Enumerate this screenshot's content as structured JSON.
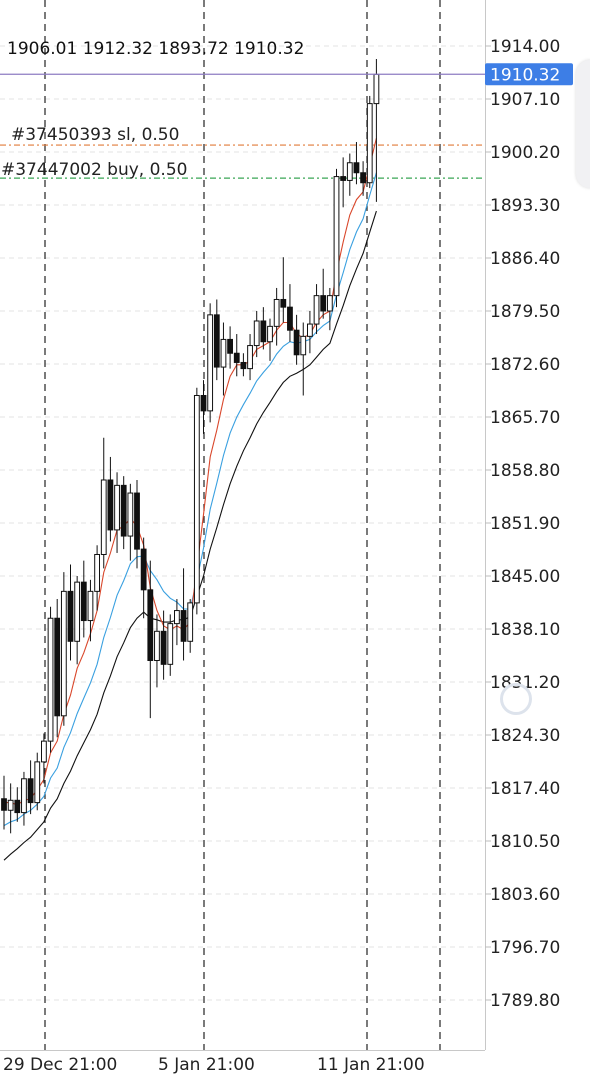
{
  "ohlc_header": "1906.01 1912.32 1893.72 1910.32",
  "current_price_label": "1910.32",
  "colors": {
    "current_line": "#8e7cc3",
    "price_tag": "#3d7ee6",
    "sl_line": "#e07b39",
    "buy_line": "#3aa655",
    "ma_fast": "#d9472b",
    "ma_mid": "#3aa0e0",
    "ma_slow": "#111111"
  },
  "chart_data": {
    "type": "candlestick",
    "instrument_note": "",
    "ylim": [
      1783.0,
      1917.5
    ],
    "y_ticks": [
      "1914.00",
      "1907.10",
      "1900.20",
      "1893.30",
      "1886.40",
      "1879.50",
      "1872.60",
      "1865.70",
      "1858.80",
      "1851.90",
      "1845.00",
      "1838.10",
      "1831.20",
      "1824.30",
      "1817.40",
      "1810.50",
      "1803.60",
      "1796.70",
      "1789.80"
    ],
    "x_labels": [
      "29 Dec 21:00",
      "5 Jan 21:00",
      "11 Jan 21:00"
    ],
    "current_price": 1910.32,
    "trades": [
      {
        "label": "#37450393 sl, 0.50",
        "price": 1901.1
      },
      {
        "label": "#37447002 buy, 0.50",
        "price": 1896.8
      }
    ],
    "candles": [
      [
        1816.0,
        1819.0,
        1812.0,
        1814.5
      ],
      [
        1814.5,
        1818.0,
        1811.5,
        1815.8
      ],
      [
        1815.8,
        1817.5,
        1813.0,
        1814.2
      ],
      [
        1814.2,
        1819.5,
        1812.5,
        1818.6
      ],
      [
        1818.6,
        1821.0,
        1814.0,
        1815.5
      ],
      [
        1815.5,
        1822.0,
        1814.5,
        1820.8
      ],
      [
        1820.8,
        1824.5,
        1818.0,
        1823.5
      ],
      [
        1823.5,
        1841.0,
        1822.0,
        1839.5
      ],
      [
        1839.5,
        1842.0,
        1824.0,
        1826.8
      ],
      [
        1826.8,
        1845.5,
        1825.5,
        1843.0
      ],
      [
        1843.0,
        1846.5,
        1834.0,
        1836.5
      ],
      [
        1836.5,
        1845.0,
        1833.5,
        1844.2
      ],
      [
        1844.2,
        1847.0,
        1837.0,
        1839.2
      ],
      [
        1839.2,
        1844.5,
        1836.5,
        1843.0
      ],
      [
        1843.0,
        1849.0,
        1840.5,
        1847.8
      ],
      [
        1847.8,
        1863.0,
        1846.0,
        1857.5
      ],
      [
        1857.5,
        1860.5,
        1849.5,
        1851.0
      ],
      [
        1851.0,
        1858.5,
        1848.0,
        1856.8
      ],
      [
        1856.8,
        1858.0,
        1848.5,
        1850.2
      ],
      [
        1850.2,
        1857.0,
        1847.0,
        1855.8
      ],
      [
        1855.8,
        1857.5,
        1846.0,
        1848.5
      ],
      [
        1848.5,
        1850.0,
        1839.5,
        1843.2
      ],
      [
        1843.2,
        1847.0,
        1826.5,
        1834.0
      ],
      [
        1834.0,
        1840.0,
        1830.5,
        1837.8
      ],
      [
        1837.8,
        1840.5,
        1831.5,
        1833.5
      ],
      [
        1833.5,
        1840.0,
        1832.0,
        1838.8
      ],
      [
        1838.8,
        1842.0,
        1836.0,
        1840.5
      ],
      [
        1840.5,
        1846.0,
        1834.0,
        1836.5
      ],
      [
        1836.5,
        1842.0,
        1835.0,
        1841.5
      ],
      [
        1841.5,
        1869.5,
        1840.0,
        1868.5
      ],
      [
        1868.5,
        1870.5,
        1863.5,
        1866.5
      ],
      [
        1866.5,
        1880.5,
        1865.0,
        1879.0
      ],
      [
        1879.0,
        1881.0,
        1870.5,
        1872.2
      ],
      [
        1872.2,
        1878.0,
        1868.5,
        1875.8
      ],
      [
        1875.8,
        1877.5,
        1872.0,
        1874.0
      ],
      [
        1874.0,
        1876.5,
        1871.0,
        1872.8
      ],
      [
        1872.8,
        1874.0,
        1871.0,
        1872.0
      ],
      [
        1872.0,
        1876.5,
        1870.5,
        1875.0
      ],
      [
        1875.0,
        1879.5,
        1873.5,
        1878.2
      ],
      [
        1878.2,
        1880.0,
        1874.5,
        1875.5
      ],
      [
        1875.5,
        1878.5,
        1873.0,
        1877.5
      ],
      [
        1877.5,
        1882.5,
        1875.0,
        1881.0
      ],
      [
        1881.0,
        1886.5,
        1878.0,
        1880.0
      ],
      [
        1880.0,
        1883.0,
        1875.5,
        1877.0
      ],
      [
        1877.0,
        1879.0,
        1872.5,
        1873.8
      ],
      [
        1873.8,
        1878.0,
        1868.5,
        1876.2
      ],
      [
        1876.2,
        1879.5,
        1874.0,
        1877.8
      ],
      [
        1877.8,
        1883.0,
        1876.5,
        1881.5
      ],
      [
        1881.5,
        1885.0,
        1878.5,
        1879.5
      ],
      [
        1879.5,
        1882.5,
        1877.0,
        1881.5
      ],
      [
        1881.5,
        1898.0,
        1880.0,
        1897.0
      ],
      [
        1897.0,
        1899.5,
        1893.0,
        1896.5
      ],
      [
        1896.5,
        1900.0,
        1894.5,
        1898.8
      ],
      [
        1898.8,
        1901.5,
        1896.0,
        1897.5
      ],
      [
        1897.5,
        1899.0,
        1894.5,
        1896.2
      ],
      [
        1896.2,
        1907.5,
        1895.5,
        1906.5
      ],
      [
        1906.5,
        1912.3,
        1893.7,
        1910.3
      ]
    ],
    "ma_fast": [
      1815.5,
      1815.5,
      1815.2,
      1815.8,
      1816.0,
      1817.2,
      1818.5,
      1822.0,
      1823.5,
      1827.0,
      1829.5,
      1833.0,
      1835.0,
      1837.5,
      1840.5,
      1845.5,
      1848.0,
      1851.0,
      1851.5,
      1852.5,
      1851.5,
      1849.0,
      1843.5,
      1840.5,
      1838.5,
      1838.0,
      1838.5,
      1838.0,
      1839.0,
      1846.0,
      1853.0,
      1860.5,
      1864.0,
      1868.0,
      1871.0,
      1872.5,
      1872.5,
      1873.0,
      1874.5,
      1875.0,
      1875.5,
      1877.0,
      1878.0,
      1878.0,
      1876.5,
      1876.0,
      1876.5,
      1878.0,
      1879.0,
      1879.5,
      1884.5,
      1888.5,
      1892.0,
      1894.0,
      1895.0,
      1898.5,
      1902.0
    ],
    "ma_mid": [
      1812.5,
      1813.0,
      1813.3,
      1814.0,
      1814.5,
      1815.3,
      1816.3,
      1818.7,
      1820.0,
      1822.7,
      1824.6,
      1827.1,
      1829.1,
      1831.1,
      1833.5,
      1837.0,
      1839.6,
      1842.5,
      1844.4,
      1846.6,
      1847.5,
      1847.6,
      1845.7,
      1844.5,
      1843.0,
      1842.1,
      1841.6,
      1840.7,
      1840.7,
      1844.5,
      1848.6,
      1853.7,
      1857.1,
      1860.7,
      1863.6,
      1865.7,
      1867.3,
      1868.8,
      1870.4,
      1871.5,
      1872.5,
      1873.9,
      1874.9,
      1875.5,
      1875.3,
      1875.5,
      1875.8,
      1876.8,
      1877.6,
      1878.2,
      1881.6,
      1884.5,
      1887.5,
      1889.8,
      1891.5,
      1894.6,
      1897.5
    ],
    "ma_slow": [
      1808.0,
      1808.8,
      1809.5,
      1810.3,
      1811.0,
      1812.0,
      1813.0,
      1814.8,
      1816.0,
      1818.0,
      1819.6,
      1821.6,
      1823.3,
      1825.0,
      1827.0,
      1829.8,
      1832.0,
      1834.5,
      1836.3,
      1838.3,
      1839.5,
      1840.3,
      1839.5,
      1839.3,
      1839.0,
      1839.0,
      1839.3,
      1839.3,
      1839.7,
      1842.3,
      1845.0,
      1848.5,
      1851.3,
      1854.3,
      1857.0,
      1859.3,
      1861.3,
      1863.0,
      1864.8,
      1866.3,
      1867.6,
      1869.0,
      1870.2,
      1871.0,
      1871.4,
      1871.9,
      1872.5,
      1873.5,
      1874.5,
      1875.3,
      1877.8,
      1880.2,
      1882.8,
      1885.0,
      1887.0,
      1889.8,
      1892.5
    ]
  }
}
